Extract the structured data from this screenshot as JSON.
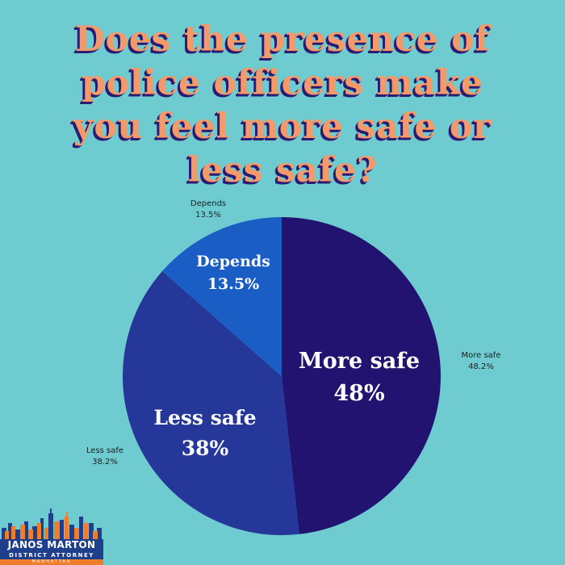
{
  "title_lines": [
    "Does the presence of",
    "police officers make",
    "you feel more safe or",
    "less safe?"
  ],
  "chart_data": {
    "type": "pie",
    "title": "Does the presence of police officers make you feel more safe or less safe?",
    "slices": [
      {
        "label": "More safe",
        "value": 48.2,
        "outer_label": "More safe",
        "outer_value": "48.2%",
        "inner_label": "More safe",
        "inner_value": "48%",
        "color": "#231370"
      },
      {
        "label": "Less safe",
        "value": 38.2,
        "outer_label": "Less safe",
        "outer_value": "38.2%",
        "inner_label": "Less safe",
        "inner_value": "38%",
        "color": "#253798"
      },
      {
        "label": "Depends",
        "value": 13.5,
        "outer_label": "Depends",
        "outer_value": "13.5%",
        "inner_label": "Depends",
        "inner_value": "13.5%",
        "color": "#1a5ec5"
      }
    ]
  },
  "logo": {
    "name": "JANOS MARTON",
    "role": "DISTRICT ATTORNEY",
    "location": "MANHATTAN",
    "colors": {
      "navy": "#1f3f8c",
      "orange": "#f07d2a"
    }
  },
  "colors": {
    "background": "#6ecbd0",
    "title": "#f49a6a",
    "title_shadow": "#2a1b73"
  }
}
